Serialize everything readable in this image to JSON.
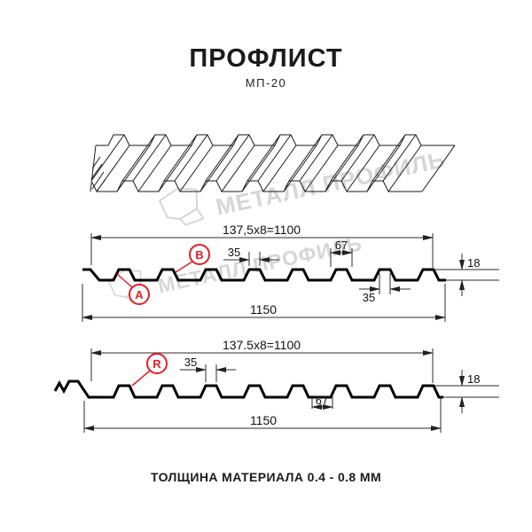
{
  "title": "ПРОФЛИСТ",
  "subtitle": "МП-20",
  "footer": "ТОЛЩИНА МАТЕРИАЛА 0.4 - 0.8 ММ",
  "watermark": {
    "brand": "МЕТАЛЛ ПРОФИЛЬ"
  },
  "colors": {
    "accent_red": "#e31e24",
    "line_black": "#1a1a1a",
    "watermark_gray": "#d6d6d6"
  },
  "profile_front": {
    "pitch_label": "137,5x8=1100",
    "rib_top_width": "35",
    "rib_base_width": "67",
    "sheet_height": "18",
    "rib_top_width_2": "35",
    "overall_width": "1150",
    "label_a": "A",
    "label_b": "B"
  },
  "profile_reverse": {
    "pitch_label": "137.5x8=1100",
    "rib_top_width": "35",
    "rib_base_width": "67",
    "sheet_height": "18",
    "overall_width": "1150",
    "label_r": "R"
  }
}
